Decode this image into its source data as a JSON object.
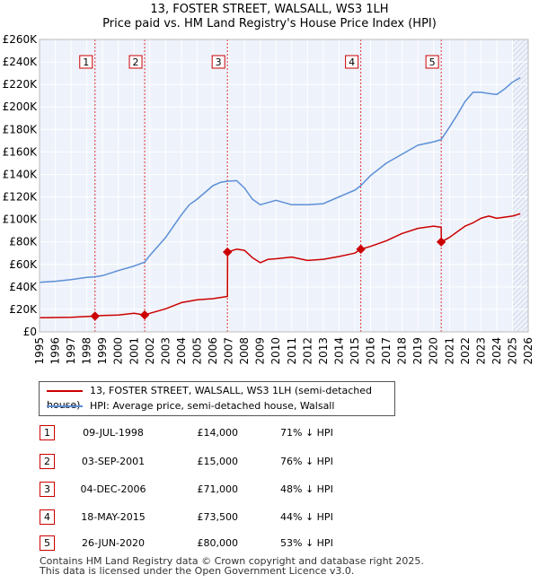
{
  "title": "13, FOSTER STREET, WALSALL, WS3 1LH",
  "subtitle": "Price paid vs. HM Land Registry's House Price Index (HPI)",
  "chart_data": {
    "type": "line",
    "xlim": [
      1995,
      2026
    ],
    "ylim": [
      0,
      260000
    ],
    "y_ticks": [
      0,
      20000,
      40000,
      60000,
      80000,
      100000,
      120000,
      140000,
      160000,
      180000,
      200000,
      220000,
      240000,
      260000
    ],
    "y_tick_labels": [
      "£0",
      "£20K",
      "£40K",
      "£60K",
      "£80K",
      "£100K",
      "£120K",
      "£140K",
      "£160K",
      "£180K",
      "£200K",
      "£220K",
      "£240K",
      "£260K"
    ],
    "x_ticks": [
      1995,
      1996,
      1997,
      1998,
      1999,
      2000,
      2001,
      2002,
      2003,
      2004,
      2005,
      2006,
      2007,
      2008,
      2009,
      2010,
      2011,
      2012,
      2013,
      2014,
      2015,
      2016,
      2017,
      2018,
      2019,
      2020,
      2021,
      2022,
      2023,
      2024,
      2025,
      2026
    ],
    "x_tick_labels": [
      "1995",
      "1996",
      "1997",
      "1998",
      "1999",
      "2000",
      "2001",
      "2002",
      "2003",
      "2004",
      "2005",
      "2006",
      "2007",
      "2008",
      "2009",
      "2010",
      "2011",
      "2012",
      "2013",
      "2014",
      "2015",
      "2016",
      "2017",
      "2018",
      "2019",
      "2020",
      "2021",
      "2022",
      "2023",
      "2024",
      "2025",
      "2026"
    ],
    "grid": true,
    "series": [
      {
        "name": "13, FOSTER STREET, WALSALL, WS3 1LH (semi-detached house)",
        "color": "#cc0000",
        "x": [
          1995.0,
          1996.0,
          1997.0,
          1998.0,
          1998.52,
          1999.0,
          2000.0,
          2001.0,
          2001.67,
          2002.0,
          2003.0,
          2004.0,
          2005.0,
          2006.0,
          2006.92,
          2006.93,
          2007.5,
          2008.0,
          2008.5,
          2009.0,
          2009.5,
          2010.0,
          2011.0,
          2012.0,
          2013.0,
          2014.0,
          2015.0,
          2015.38,
          2016.0,
          2017.0,
          2018.0,
          2019.0,
          2019.5,
          2020.0,
          2020.48,
          2020.49,
          2021.0,
          2021.5,
          2022.0,
          2022.5,
          2023.0,
          2023.5,
          2024.0,
          2024.5,
          2025.0,
          2025.5
        ],
        "y": [
          12500,
          12800,
          13000,
          13600,
          14000,
          14500,
          15000,
          16500,
          15000,
          16500,
          20500,
          26000,
          28500,
          29500,
          31500,
          71000,
          73500,
          72500,
          66000,
          61500,
          64500,
          65000,
          66500,
          63500,
          64500,
          67000,
          70000,
          73500,
          76000,
          81000,
          87500,
          92000,
          93000,
          94000,
          93000,
          80000,
          84000,
          89000,
          94000,
          97000,
          101000,
          103000,
          101000,
          102000,
          103000,
          105000
        ]
      },
      {
        "name": "HPI: Average price, semi-detached house, Walsall",
        "color": "#5b8fd6",
        "x": [
          1995.0,
          1996.0,
          1997.0,
          1998.0,
          1998.52,
          1999.0,
          2000.0,
          2001.0,
          2001.67,
          2002.0,
          2003.0,
          2004.0,
          2004.5,
          2005.0,
          2005.5,
          2006.0,
          2006.5,
          2006.92,
          2007.5,
          2008.0,
          2008.5,
          2009.0,
          2009.5,
          2010.0,
          2011.0,
          2012.0,
          2013.0,
          2014.0,
          2015.0,
          2015.38,
          2016.0,
          2017.0,
          2018.0,
          2019.0,
          2020.0,
          2020.48,
          2021.0,
          2021.5,
          2022.0,
          2022.5,
          2023.0,
          2023.5,
          2024.0,
          2024.5,
          2025.0,
          2025.5
        ],
        "y": [
          44000,
          45000,
          46500,
          48500,
          49000,
          50000,
          54500,
          58500,
          62000,
          68000,
          84000,
          104000,
          113000,
          118000,
          124000,
          130000,
          133000,
          134000,
          134500,
          128000,
          118000,
          113000,
          115000,
          117000,
          113000,
          113000,
          114000,
          120000,
          126000,
          130000,
          139000,
          150000,
          158000,
          166000,
          169000,
          171000,
          182000,
          193000,
          205000,
          213000,
          213000,
          212000,
          211000,
          216000,
          222000,
          226000
        ]
      }
    ],
    "sale_markers": [
      {
        "label": "1",
        "x": 1998.52,
        "y": 14000
      },
      {
        "label": "2",
        "x": 2001.67,
        "y": 15000
      },
      {
        "label": "3",
        "x": 2006.92,
        "y": 71000
      },
      {
        "label": "4",
        "x": 2015.38,
        "y": 73500
      },
      {
        "label": "5",
        "x": 2020.48,
        "y": 80000
      }
    ]
  },
  "legend": {
    "property": "13, FOSTER STREET, WALSALL, WS3 1LH (semi-detached house)",
    "hpi": "HPI: Average price, semi-detached house, Walsall"
  },
  "sales": [
    {
      "num": "1",
      "date": "09-JUL-1998",
      "price": "£14,000",
      "hpi": "71% ↓ HPI"
    },
    {
      "num": "2",
      "date": "03-SEP-2001",
      "price": "£15,000",
      "hpi": "76% ↓ HPI"
    },
    {
      "num": "3",
      "date": "04-DEC-2006",
      "price": "£71,000",
      "hpi": "48% ↓ HPI"
    },
    {
      "num": "4",
      "date": "18-MAY-2015",
      "price": "£73,500",
      "hpi": "44% ↓ HPI"
    },
    {
      "num": "5",
      "date": "26-JUN-2020",
      "price": "£80,000",
      "hpi": "53% ↓ HPI"
    }
  ],
  "footer": {
    "line1": "Contains HM Land Registry data © Crown copyright and database right 2025.",
    "line2": "This data is licensed under the Open Government Licence v3.0."
  }
}
